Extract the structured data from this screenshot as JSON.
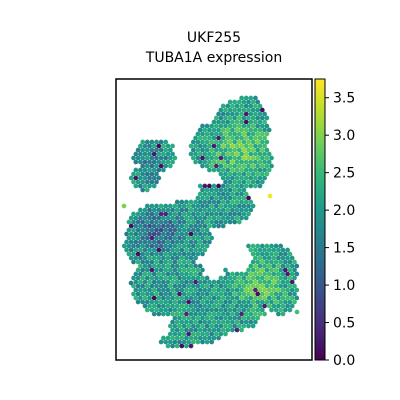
{
  "chart_data": {
    "type": "scatter",
    "title": [
      "UKF255",
      "TUBA1A expression"
    ],
    "xlabel": "",
    "ylabel": "",
    "colorbar": {
      "colormap": "viridis",
      "range": [
        0.0,
        3.75
      ],
      "ticks": [
        0.0,
        0.5,
        1.0,
        1.5,
        2.0,
        2.5,
        3.0,
        3.5
      ],
      "tick_labels": [
        "0.0",
        "0.5",
        "1.0",
        "1.5",
        "2.0",
        "2.5",
        "3.0",
        "3.5"
      ]
    },
    "grid": false,
    "axes_ticks_visible": false,
    "spot_shape": "hexagonal-spatial-spots",
    "value_summary": {
      "typical_range": [
        1.5,
        3.0
      ],
      "low_value_region": "left-center cluster (~1.0-1.5)",
      "high_value_regions": "upper-right and lower-right (~2.5-3.5)"
    }
  },
  "colors": {
    "viridis": [
      "#440154",
      "#482878",
      "#3e4989",
      "#31688e",
      "#26828e",
      "#1f9e89",
      "#35b779",
      "#6ece58",
      "#b5de2b",
      "#fde725"
    ],
    "frame": "#000000",
    "background": "#ffffff"
  }
}
